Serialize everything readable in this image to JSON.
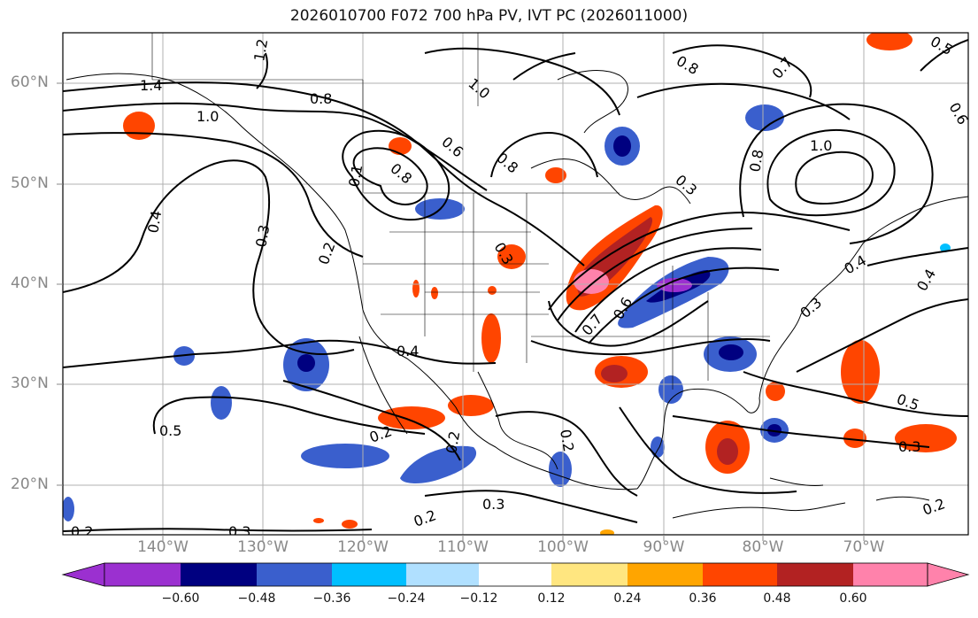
{
  "title": "2026010700 F072 700 hPa PV, IVT PC (2026011000)",
  "lat_labels": [
    "60°N",
    "50°N",
    "40°N",
    "30°N",
    "20°N"
  ],
  "lon_labels": [
    "140°W",
    "130°W",
    "120°W",
    "110°W",
    "100°W",
    "90°W",
    "80°W",
    "70°W"
  ],
  "colorbar": {
    "ticks": [
      "−0.60",
      "−0.48",
      "−0.36",
      "−0.24",
      "−0.12",
      "0.12",
      "0.24",
      "0.36",
      "0.48",
      "0.60"
    ],
    "colors": [
      "#9b30d0",
      "#000080",
      "#3a5fcd",
      "#00bfff",
      "#b0e0ff",
      "#ffffff",
      "#ffe680",
      "#ffa500",
      "#ff4500",
      "#b22222",
      "#ff82ab"
    ]
  },
  "contour_labels": [
    "1.2",
    "1.4",
    "1.0",
    "0.8",
    "1.0",
    "0.6",
    "0.8",
    "0.8",
    "0.4",
    "0.3",
    "0.2",
    "0.4",
    "0.3",
    "0.7",
    "0.6",
    "0.3",
    "0.4",
    "0.5",
    "0.2",
    "0.2",
    "0.2",
    "0.3",
    "0.2",
    "0.5",
    "0.3",
    "0.2",
    "0.2",
    "0.3",
    "0.4",
    "0.3",
    "0.7",
    "1.0",
    "0.8",
    "0.5",
    "0.6",
    "0.8",
    "0.1"
  ]
}
